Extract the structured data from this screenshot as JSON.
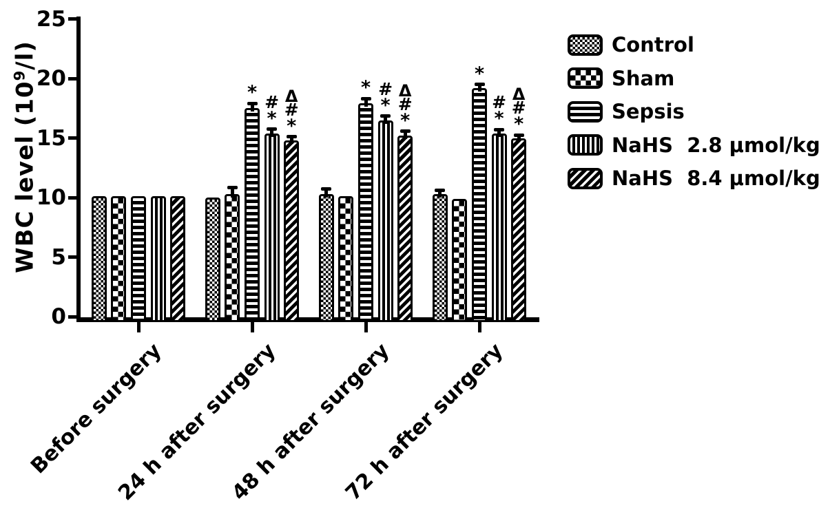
{
  "figure": {
    "background": "#ffffff",
    "ink": "#000000"
  },
  "y_axis": {
    "title_prefix": "WBC level (10",
    "title_sup": "9",
    "title_suffix": "/l)",
    "tick_labels": [
      "0",
      "5",
      "10",
      "15",
      "20",
      "25"
    ],
    "range": [
      0,
      25
    ]
  },
  "x_axis": {
    "categories": [
      "Before surgery",
      "24 h after surgery",
      "48 h after surgery",
      "72 h after surgery"
    ]
  },
  "legend": {
    "position": "right-top",
    "items": [
      {
        "label": "Control"
      },
      {
        "label": "Sham"
      },
      {
        "label": "Sepsis"
      },
      {
        "label": "NaHS  2.8 μmol/kg"
      },
      {
        "label": "NaHS  8.4 μmol/kg"
      }
    ]
  },
  "chart_data": {
    "type": "bar",
    "title": "",
    "xlabel": "",
    "ylabel": "WBC level (10^9/l)",
    "ylim": [
      0,
      25
    ],
    "yticks": [
      0,
      5,
      10,
      15,
      20,
      25
    ],
    "grid": false,
    "legend_position": "right-top",
    "categories": [
      "Before surgery",
      "24 h after surgery",
      "48 h after surgery",
      "72 h after surgery"
    ],
    "series": [
      {
        "name": "Control",
        "pattern": "fine-checker",
        "values": [
          10.1,
          10.0,
          10.3,
          10.3
        ],
        "errors": [
          0,
          0,
          0.4,
          0.3
        ],
        "annotations": [
          "",
          "",
          "",
          ""
        ]
      },
      {
        "name": "Sham",
        "pattern": "coarse-checker",
        "values": [
          10.1,
          10.3,
          10.1,
          9.9
        ],
        "errors": [
          0,
          0.55,
          0,
          0
        ],
        "annotations": [
          "",
          "",
          "",
          ""
        ]
      },
      {
        "name": "Sepsis",
        "pattern": "h-stripes",
        "values": [
          10.1,
          17.5,
          17.9,
          19.2
        ],
        "errors": [
          0,
          0.4,
          0.4,
          0.3
        ],
        "annotations": [
          "",
          "*",
          "*",
          "*"
        ]
      },
      {
        "name": "NaHS 2.8 μmol/kg",
        "pattern": "v-stripes",
        "values": [
          10.1,
          15.4,
          16.5,
          15.4
        ],
        "errors": [
          0,
          0.35,
          0.35,
          0.3
        ],
        "annotations": [
          "",
          "#*",
          "#*",
          "#*"
        ]
      },
      {
        "name": "NaHS 8.4 μmol/kg",
        "pattern": "d-stripes",
        "values": [
          10.1,
          14.8,
          15.2,
          15.0
        ],
        "errors": [
          0,
          0.3,
          0.35,
          0.25
        ],
        "annotations": [
          "",
          "Δ#*",
          "Δ#*",
          "Δ#*"
        ]
      }
    ]
  }
}
